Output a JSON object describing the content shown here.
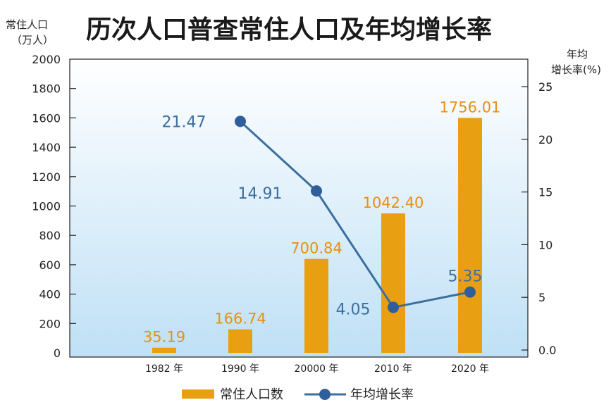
{
  "colors": {
    "bar": "#E8A012",
    "line": "#3C6E9E",
    "point": "#2F5E9A",
    "bar_label": "#E8900F",
    "line_label": "#3E6E9E",
    "bg_top": "#FFFFFF",
    "bg_bottom": "#BFE0F6"
  },
  "chart_data": {
    "type": "bar",
    "title": "历次人口普查常住人口及年均增长率",
    "y_left_label_line1": "常住人口",
    "y_left_label_line2": "（万人）",
    "y_right_label_line1": "年均",
    "y_right_label_line2": "增长率(%)",
    "categories": [
      "1982 年",
      "1990 年",
      "20000 年",
      "2010 年",
      "2020 年"
    ],
    "ylim_left": [
      0,
      2000
    ],
    "yticks_left": [
      "0",
      "200",
      "400",
      "600",
      "800",
      "1000",
      "1200",
      "1400",
      "1600",
      "1800",
      "2000"
    ],
    "ylim_right": [
      0,
      25
    ],
    "yticks_right": [
      "0.0",
      "5",
      "10",
      "15",
      "20",
      "25"
    ],
    "series": [
      {
        "name": "常住人口数",
        "kind": "bar",
        "axis": "left",
        "values": [
          35.19,
          166.74,
          700.84,
          1042.4,
          1756.01
        ],
        "drawn_values": [
          35,
          160,
          640,
          950,
          1600
        ],
        "labels": [
          "35.19",
          "166.74",
          "700.84",
          "1042.40",
          "1756.01"
        ]
      },
      {
        "name": "年均增长率",
        "kind": "line",
        "axis": "right",
        "values": [
          null,
          21.47,
          14.91,
          4.05,
          5.35
        ],
        "drawn_values": [
          null,
          21.7,
          15.1,
          4.05,
          5.5
        ],
        "labels": [
          "",
          "21.47",
          "14.91",
          "4.05",
          "5.35"
        ]
      }
    ],
    "legend": {
      "position": "bottom",
      "items": [
        {
          "label": "常住人口数",
          "kind": "bar"
        },
        {
          "label": "年均增长率",
          "kind": "line"
        }
      ]
    }
  }
}
